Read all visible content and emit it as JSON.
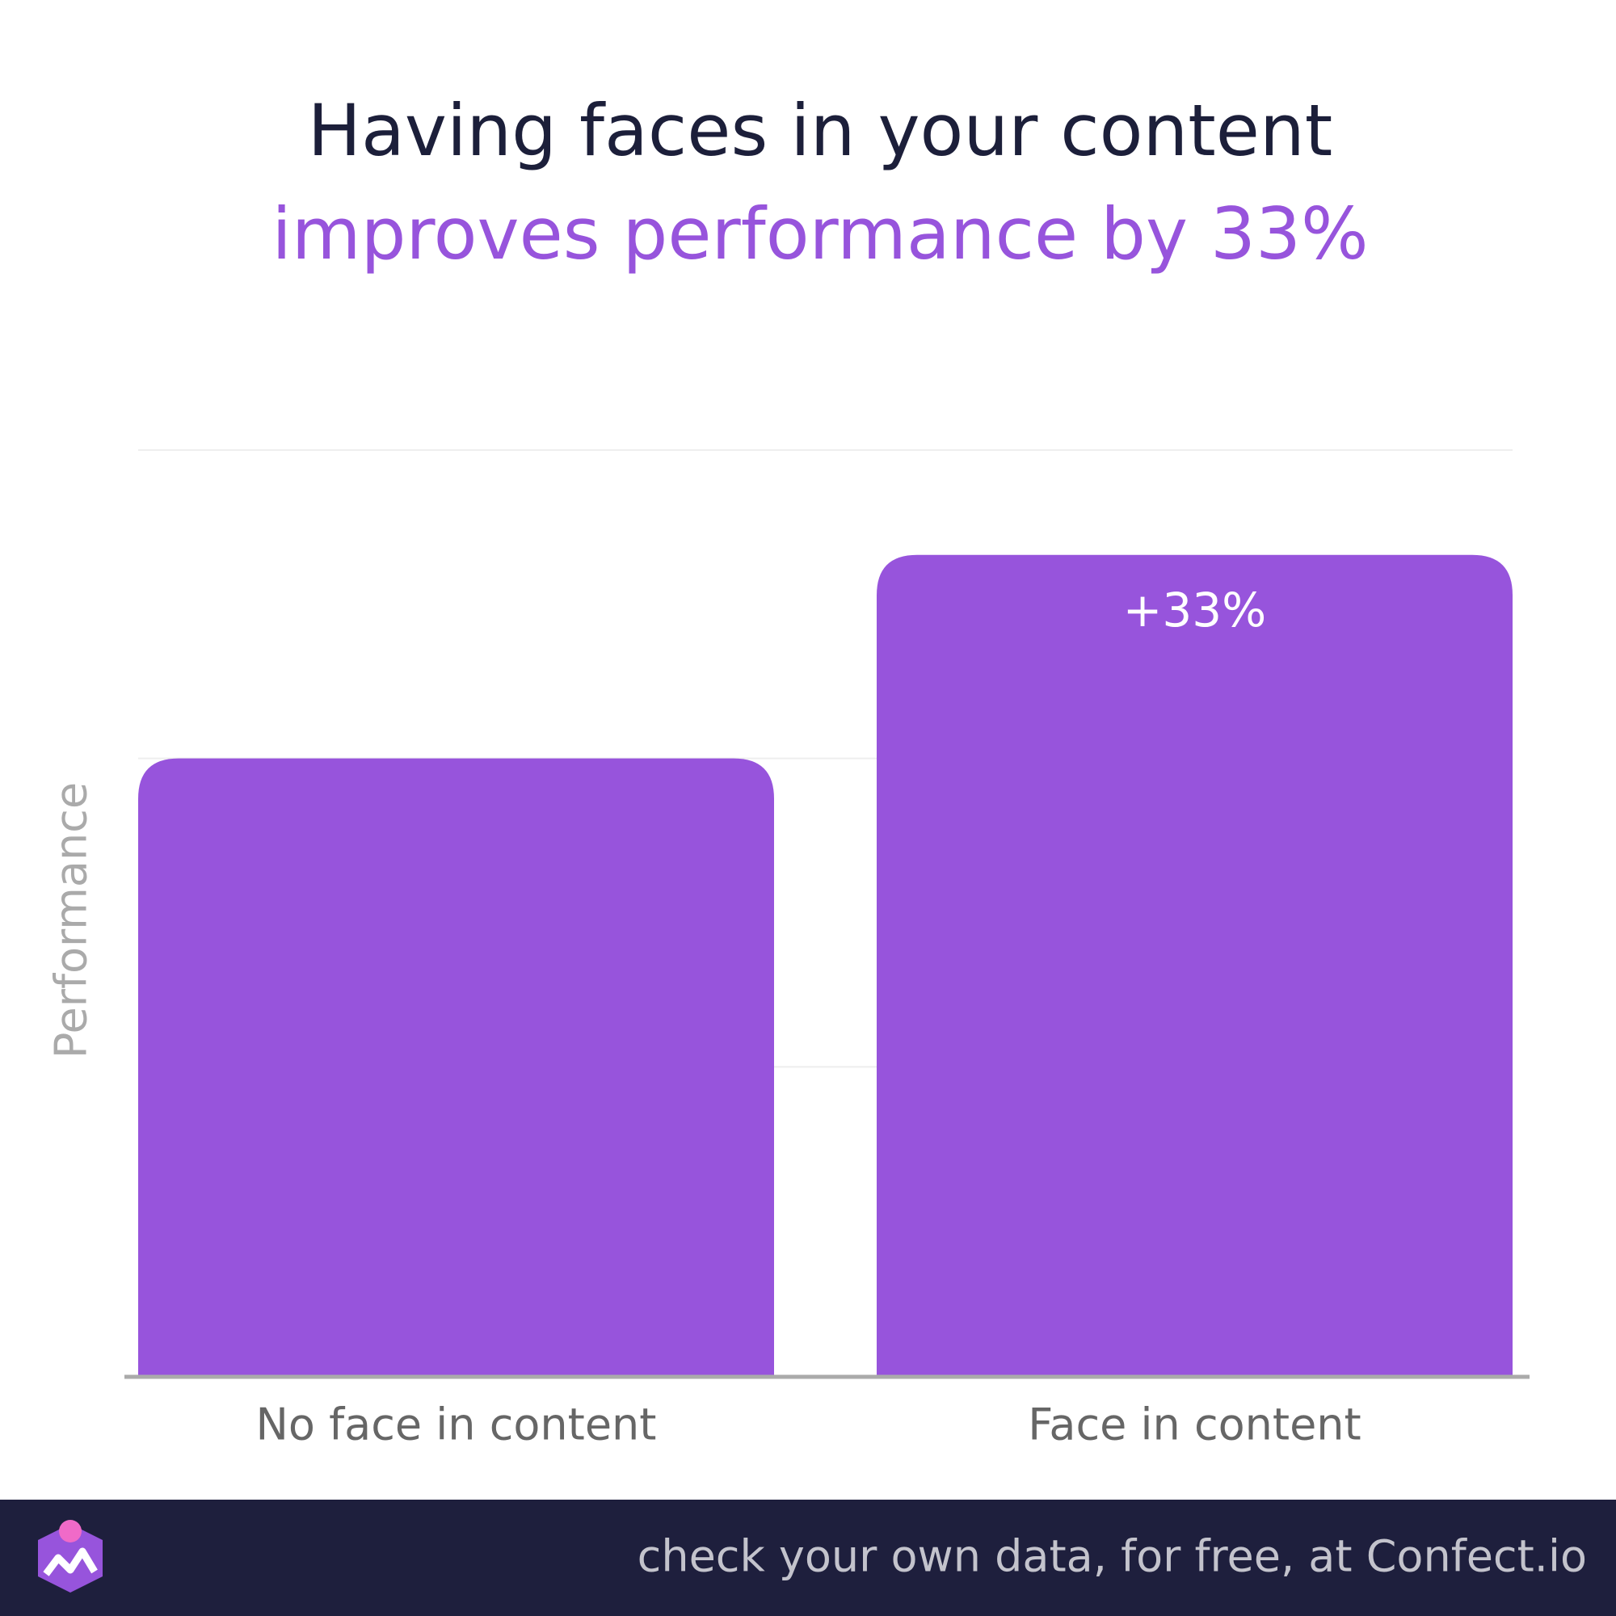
{
  "chart_data": {
    "type": "bar",
    "title": "Having faces in your content",
    "subtitle": "improves performance by 33%",
    "y_label": "Performance",
    "categories": [
      "No face in content",
      "Face in content"
    ],
    "values": [
      100,
      133
    ],
    "color": "#9754dc",
    "annotation": "+33%",
    "ylim": [
      0,
      150
    ],
    "yticks": [
      50,
      100,
      150
    ],
    "grid": true
  },
  "footer": {
    "text": "check your own data, for free, at Confect.io"
  }
}
